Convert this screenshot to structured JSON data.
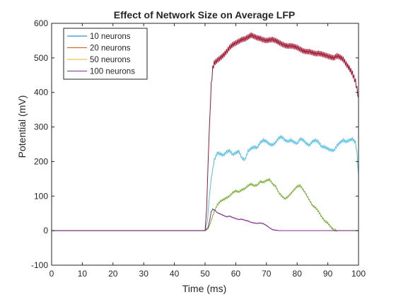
{
  "chart_data": {
    "type": "line",
    "title": "Effect of Network Size on Average LFP",
    "xlabel": "Time (ms)",
    "ylabel": "Potential (mV)",
    "xlim": [
      0,
      100
    ],
    "ylim": [
      -100,
      600
    ],
    "x_ticks": [
      0,
      10,
      20,
      30,
      40,
      50,
      60,
      70,
      80,
      90,
      100
    ],
    "y_ticks": [
      -100,
      0,
      100,
      200,
      300,
      400,
      500,
      600
    ],
    "grid": false,
    "legend_position": "top-left",
    "series": [
      {
        "name": "10 neurons",
        "color": "#4DBEEE",
        "legend_color": "#0072BD",
        "noise": 7,
        "x": [
          0,
          50,
          50.8,
          51.5,
          52,
          53,
          54,
          55,
          56,
          57,
          58,
          59,
          60,
          61,
          62,
          63,
          64,
          65,
          66,
          67,
          68,
          69,
          70,
          71,
          72,
          73,
          74,
          75,
          76,
          77,
          78,
          79,
          80,
          81,
          82,
          83,
          84,
          85,
          86,
          87,
          88,
          89,
          90,
          91,
          92,
          93,
          94,
          95,
          96,
          97,
          98,
          99,
          99.5,
          100
        ],
        "y": [
          0,
          0,
          30,
          110,
          150,
          205,
          225,
          222,
          218,
          228,
          232,
          220,
          225,
          230,
          210,
          205,
          230,
          238,
          242,
          240,
          255,
          262,
          258,
          250,
          248,
          255,
          268,
          272,
          262,
          258,
          262,
          256,
          252,
          266,
          262,
          252,
          247,
          258,
          262,
          256,
          243,
          242,
          237,
          233,
          232,
          246,
          255,
          262,
          257,
          262,
          265,
          256,
          225,
          160
        ]
      },
      {
        "name": "20 neurons",
        "color": "#A2142F",
        "legend_color": "#D95319",
        "noise": 16,
        "x": [
          0,
          50,
          50.5,
          51,
          51.5,
          52,
          52.5,
          53,
          54,
          55,
          56,
          57,
          58,
          59,
          60,
          61,
          62,
          63,
          64,
          65,
          66,
          67,
          68,
          69,
          70,
          71,
          72,
          73,
          74,
          75,
          76,
          77,
          78,
          79,
          80,
          81,
          82,
          83,
          84,
          85,
          86,
          87,
          88,
          89,
          90,
          91,
          92,
          93,
          94,
          95,
          96,
          97,
          98,
          99,
          99.5,
          100
        ],
        "y": [
          0,
          0,
          60,
          200,
          320,
          420,
          470,
          485,
          493,
          500,
          508,
          518,
          530,
          538,
          543,
          548,
          553,
          555,
          560,
          566,
          562,
          558,
          556,
          552,
          550,
          552,
          553,
          550,
          545,
          540,
          536,
          534,
          535,
          533,
          530,
          525,
          520,
          518,
          518,
          515,
          512,
          513,
          511,
          508,
          505,
          502,
          500,
          506,
          502,
          496,
          482,
          470,
          455,
          432,
          410,
          385
        ]
      },
      {
        "name": "50 neurons",
        "color": "#77AC30",
        "legend_color": "#EDB120",
        "noise": 5,
        "x": [
          0,
          50,
          51,
          52,
          53,
          54,
          55,
          56,
          57,
          58,
          59,
          60,
          61,
          62,
          63,
          64,
          65,
          66,
          67,
          68,
          69,
          70,
          71,
          72,
          73,
          74,
          75,
          76,
          77,
          78,
          79,
          80,
          81,
          82,
          83,
          84,
          85,
          86,
          87,
          88,
          89,
          90,
          91,
          92,
          93,
          100
        ],
        "y": [
          0,
          0,
          5,
          30,
          55,
          75,
          85,
          90,
          95,
          100,
          110,
          115,
          112,
          118,
          122,
          130,
          135,
          130,
          132,
          142,
          140,
          145,
          148,
          135,
          128,
          110,
          100,
          92,
          98,
          108,
          118,
          128,
          130,
          118,
          104,
          88,
          73,
          66,
          55,
          40,
          28,
          22,
          10,
          2,
          0,
          0
        ]
      },
      {
        "name": "100 neurons",
        "color": "#7E2F8E",
        "legend_color": "#7E2F8E",
        "noise": 2,
        "x": [
          0,
          50,
          51,
          51.5,
          52,
          52.5,
          53,
          54,
          55,
          56,
          57,
          58,
          59,
          60,
          61,
          62,
          63,
          64,
          65,
          66,
          67,
          68,
          69,
          70,
          71,
          72,
          73,
          74,
          100
        ],
        "y": [
          0,
          0,
          10,
          30,
          55,
          62,
          60,
          52,
          48,
          44,
          40,
          42,
          38,
          35,
          32,
          33,
          30,
          28,
          24,
          22,
          21,
          22,
          20,
          15,
          8,
          3,
          1,
          0,
          0
        ]
      }
    ]
  }
}
